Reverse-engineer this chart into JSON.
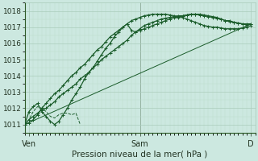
{
  "title": "",
  "xlabel": "Pression niveau de la mer( hPa )",
  "ylabel": "",
  "bg_color": "#cce8e0",
  "grid_color_major": "#aaccbb",
  "grid_color_minor": "#bbddcc",
  "line_color": "#1a5c2a",
  "xlim": [
    0,
    54
  ],
  "ylim": [
    1010.5,
    1018.5
  ],
  "yticks": [
    1011,
    1012,
    1013,
    1014,
    1015,
    1016,
    1017,
    1018
  ],
  "xtick_positions": [
    1,
    27,
    53
  ],
  "xtick_labels": [
    "Ven",
    "Sam",
    "D"
  ],
  "series1_x": [
    0,
    1,
    2,
    3,
    4,
    5,
    6,
    7,
    8,
    9,
    10,
    11,
    12,
    13,
    14,
    15,
    16,
    17,
    18,
    19,
    20,
    21,
    22,
    23,
    24,
    25,
    26,
    27,
    28,
    29,
    30,
    31,
    32,
    33,
    34,
    35,
    36,
    37,
    38,
    39,
    40,
    41,
    42,
    43,
    44,
    45,
    46,
    47,
    48,
    49,
    50,
    51,
    52,
    53
  ],
  "series1_y": [
    1011.0,
    1011.3,
    1011.5,
    1011.7,
    1011.9,
    1012.0,
    1012.2,
    1012.4,
    1012.7,
    1012.9,
    1013.1,
    1013.3,
    1013.5,
    1013.8,
    1014.0,
    1014.2,
    1014.5,
    1014.7,
    1015.0,
    1015.2,
    1015.4,
    1015.6,
    1015.8,
    1016.0,
    1016.2,
    1016.5,
    1016.7,
    1016.8,
    1016.9,
    1017.0,
    1017.1,
    1017.2,
    1017.3,
    1017.4,
    1017.5,
    1017.6,
    1017.6,
    1017.7,
    1017.75,
    1017.8,
    1017.8,
    1017.8,
    1017.75,
    1017.7,
    1017.65,
    1017.6,
    1017.5,
    1017.4,
    1017.35,
    1017.3,
    1017.25,
    1017.2,
    1017.2,
    1017.2
  ],
  "series2_x": [
    0,
    1,
    2,
    3,
    4,
    5,
    6,
    7,
    8,
    9,
    10,
    11,
    12,
    13,
    14,
    15,
    16,
    17,
    18,
    19,
    20,
    21,
    22,
    23,
    24,
    25,
    26,
    27,
    28,
    29,
    30,
    31,
    32,
    33,
    34,
    35,
    36,
    37,
    38,
    39,
    40,
    41,
    42,
    43,
    44,
    45,
    46,
    47,
    48,
    49,
    50,
    51,
    52,
    53
  ],
  "series2_y": [
    1011.0,
    1011.8,
    1012.1,
    1012.3,
    1011.8,
    1011.5,
    1011.2,
    1011.0,
    1011.2,
    1011.6,
    1012.0,
    1012.5,
    1012.9,
    1013.3,
    1013.8,
    1014.2,
    1014.5,
    1014.9,
    1015.3,
    1015.7,
    1016.0,
    1016.4,
    1016.7,
    1017.0,
    1017.2,
    1016.8,
    1016.7,
    1016.9,
    1017.1,
    1017.2,
    1017.3,
    1017.4,
    1017.5,
    1017.55,
    1017.6,
    1017.65,
    1017.7,
    1017.7,
    1017.75,
    1017.8,
    1017.8,
    1017.75,
    1017.7,
    1017.65,
    1017.6,
    1017.55,
    1017.5,
    1017.4,
    1017.4,
    1017.3,
    1017.25,
    1017.2,
    1017.15,
    1017.2
  ],
  "series3_x": [
    0,
    1,
    2,
    3,
    4,
    5,
    6,
    7,
    8,
    9,
    10,
    11,
    12,
    13,
    14,
    15,
    16,
    17,
    18,
    19,
    20,
    21,
    22,
    23,
    24,
    25,
    26,
    27,
    28,
    29,
    30,
    31,
    32,
    33,
    34,
    35,
    36,
    37,
    38,
    39,
    40,
    41,
    42,
    43,
    44,
    45,
    46,
    47,
    48,
    49,
    50,
    51,
    52,
    53
  ],
  "series3_y": [
    1011.0,
    1011.1,
    1011.3,
    1011.6,
    1012.0,
    1012.3,
    1012.6,
    1012.9,
    1013.1,
    1013.4,
    1013.7,
    1014.0,
    1014.2,
    1014.5,
    1014.7,
    1015.0,
    1015.3,
    1015.6,
    1015.8,
    1016.1,
    1016.4,
    1016.6,
    1016.8,
    1017.0,
    1017.2,
    1017.4,
    1017.5,
    1017.6,
    1017.7,
    1017.75,
    1017.8,
    1017.8,
    1017.8,
    1017.8,
    1017.75,
    1017.7,
    1017.65,
    1017.6,
    1017.5,
    1017.4,
    1017.3,
    1017.2,
    1017.1,
    1017.05,
    1017.0,
    1017.0,
    1016.95,
    1016.9,
    1016.9,
    1016.9,
    1016.9,
    1016.95,
    1017.0,
    1017.1
  ],
  "trend_x": [
    0,
    53
  ],
  "trend_y": [
    1011.0,
    1017.2
  ],
  "dashed_x": [
    0,
    1,
    2,
    3,
    4,
    5,
    6,
    7,
    8,
    9,
    10,
    11,
    12,
    13
  ],
  "dashed_y": [
    1011.0,
    1011.3,
    1011.8,
    1012.1,
    1012.0,
    1011.8,
    1011.5,
    1011.4,
    1011.6,
    1011.7,
    1011.7,
    1011.6,
    1011.7,
    1011.0
  ]
}
